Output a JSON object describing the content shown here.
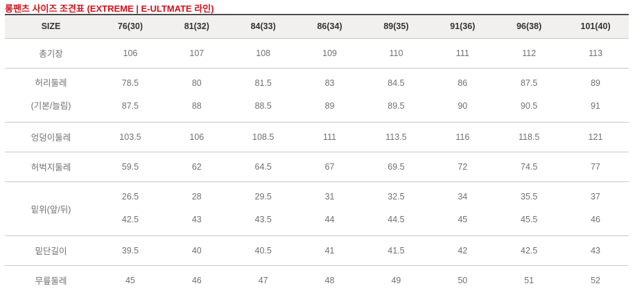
{
  "title": "롱팬츠 사이즈 조견표 (EXTREME | E-ULTMATE 라인)",
  "colors": {
    "title_red": "#d0121b",
    "header_bg": "#f1f0ef",
    "header_text": "#333333",
    "body_text": "#707070",
    "top_border": "#4c4c4c",
    "row_border": "#c9c9c9"
  },
  "chart_data": {
    "type": "table",
    "title": "롱팬츠 사이즈 조견표 (EXTREME | E-ULTMATE 라인)",
    "columns": [
      "SIZE",
      "76(30)",
      "81(32)",
      "84(33)",
      "86(34)",
      "89(35)",
      "91(36)",
      "96(38)",
      "101(40)"
    ],
    "rows": [
      {
        "label_lines": [
          "총기장"
        ],
        "value_lines": [
          [
            "106",
            "107",
            "108",
            "109",
            "110",
            "111",
            "112",
            "113"
          ]
        ]
      },
      {
        "label_lines": [
          "허리둘레",
          "(기본/늘림)"
        ],
        "value_lines": [
          [
            "78.5",
            "80",
            "81.5",
            "83",
            "84.5",
            "86",
            "87.5",
            "89"
          ],
          [
            "87.5",
            "88",
            "88.5",
            "89",
            "89.5",
            "90",
            "90.5",
            "91"
          ]
        ]
      },
      {
        "label_lines": [
          "엉덩이둘레"
        ],
        "value_lines": [
          [
            "103.5",
            "106",
            "108.5",
            "111",
            "113.5",
            "116",
            "118.5",
            "121"
          ]
        ]
      },
      {
        "label_lines": [
          "허벅지둘레"
        ],
        "value_lines": [
          [
            "59.5",
            "62",
            "64.5",
            "67",
            "69.5",
            "72",
            "74.5",
            "77"
          ]
        ]
      },
      {
        "label_lines": [
          "밑위(앞/뒤)"
        ],
        "value_lines": [
          [
            "26.5",
            "28",
            "29.5",
            "31",
            "32.5",
            "34",
            "35.5",
            "37"
          ],
          [
            "42.5",
            "43",
            "43.5",
            "44",
            "44.5",
            "45",
            "45.5",
            "46"
          ]
        ]
      },
      {
        "label_lines": [
          "밑단길이"
        ],
        "value_lines": [
          [
            "39.5",
            "40",
            "40.5",
            "41",
            "41.5",
            "42",
            "42.5",
            "43"
          ]
        ]
      },
      {
        "label_lines": [
          "무릎둘레"
        ],
        "value_lines": [
          [
            "45",
            "46",
            "47",
            "48",
            "49",
            "50",
            "51",
            "52"
          ]
        ]
      }
    ]
  }
}
